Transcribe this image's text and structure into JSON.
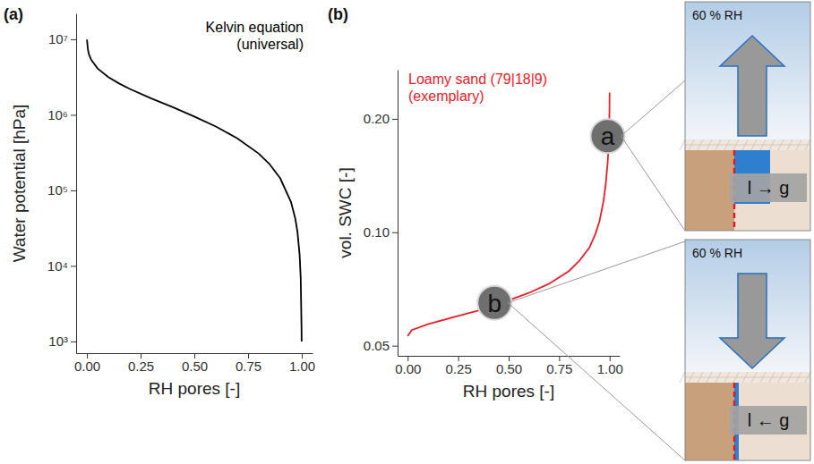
{
  "chart_data": [
    {
      "type": "line",
      "title": "(a)",
      "xlabel": "RH pores [-]",
      "ylabel": "Water potential [hPa]",
      "log": "y",
      "xlim": [
        -0.05,
        1.05
      ],
      "xticks": [
        {
          "value": 0,
          "label": "0.00"
        },
        {
          "value": 0.25,
          "label": "0.25"
        },
        {
          "value": 0.5,
          "label": "0.50"
        },
        {
          "value": 0.75,
          "label": "0.75"
        },
        {
          "value": 1,
          "label": "1.00"
        }
      ],
      "ylim": [
        700,
        22000000
      ],
      "yticks": [
        {
          "value": 1000,
          "label": "10³"
        },
        {
          "value": 10000,
          "label": "10⁴"
        },
        {
          "value": 100000,
          "label": "10⁵"
        },
        {
          "value": 1000000,
          "label": "10⁶"
        },
        {
          "value": 10000000,
          "label": "10⁷"
        }
      ],
      "x": [
        0.0007,
        0.001,
        0.005,
        0.01,
        0.02,
        0.05,
        0.1,
        0.15,
        0.2,
        0.3,
        0.4,
        0.5,
        0.6,
        0.7,
        0.8,
        0.85,
        0.9,
        0.95,
        0.97,
        0.98,
        0.99,
        0.995,
        0.999,
        0.9993
      ],
      "series": [
        {
          "color": "#000000",
          "values": [
            9900000,
            9500000,
            7300000,
            6300000,
            5360000,
            4100000,
            3150000,
            2600000,
            2200000,
            1650000,
            1260000,
            950000,
            700000,
            489000,
            306000,
            223000,
            144000,
            70000,
            42000,
            28000,
            14000,
            6900,
            1400,
            1000
          ]
        }
      ],
      "annotations": [
        {
          "lines": [
            "Kelvin equation",
            "(universal)"
          ]
        }
      ]
    },
    {
      "type": "line",
      "title": "(b)",
      "xlabel": "RH pores [-]",
      "ylabel": "vol. SWC [-]",
      "log": "y",
      "xlim": [
        -0.05,
        1.05
      ],
      "xticks": [
        {
          "value": 0,
          "label": "0.00"
        },
        {
          "value": 0.25,
          "label": "0.25"
        },
        {
          "value": 0.5,
          "label": "0.50"
        },
        {
          "value": 0.75,
          "label": "0.75"
        },
        {
          "value": 1,
          "label": "1.00"
        }
      ],
      "ylim": [
        0.047,
        0.27
      ],
      "yticks": [
        {
          "value": 0.05,
          "label": "0.05"
        },
        {
          "value": 0.1,
          "label": "0.10"
        },
        {
          "value": 0.2,
          "label": "0.20"
        }
      ],
      "x": [
        0.0,
        0.02,
        0.1,
        0.25,
        0.4,
        0.5,
        0.6,
        0.7,
        0.8,
        0.85,
        0.9,
        0.93,
        0.95,
        0.97,
        0.98,
        0.99,
        0.995,
        0.998,
        0.9995,
        1.0
      ],
      "series": [
        {
          "color": "#e8202a",
          "values": [
            0.053,
            0.055,
            0.057,
            0.06,
            0.063,
            0.066,
            0.069,
            0.073,
            0.079,
            0.084,
            0.091,
            0.099,
            0.107,
            0.121,
            0.133,
            0.152,
            0.168,
            0.19,
            0.215,
            0.235
          ]
        }
      ],
      "annotations": [
        {
          "lines": [
            "Loamy sand (79|18|9)",
            "(exemplary)"
          ]
        },
        {
          "text": "a",
          "x": 0.99,
          "y": 0.18
        },
        {
          "text": "b",
          "x": 0.43,
          "y": 0.065
        }
      ]
    }
  ],
  "insets": [
    {
      "rh_label": "60 % RH",
      "flux_label": "l → g",
      "arrow": "up"
    },
    {
      "rh_label": "60 % RH",
      "flux_label": "l ← g",
      "arrow": "down"
    }
  ]
}
